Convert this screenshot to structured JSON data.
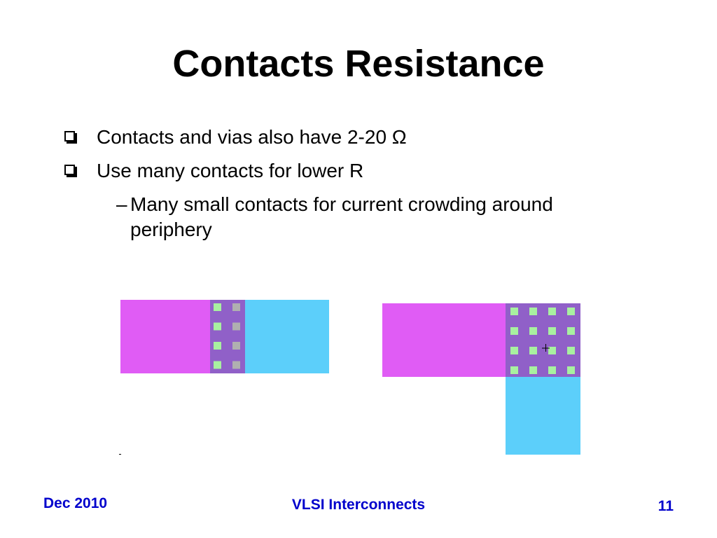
{
  "slide": {
    "title": "Contacts Resistance",
    "bullets": [
      {
        "text": "Contacts and vias also have 2-20 Ω",
        "icon": "checkbox-bullet-icon"
      },
      {
        "text": "Use many contacts for lower R",
        "icon": "checkbox-bullet-icon"
      }
    ],
    "sub_bullet": {
      "dash": "–",
      "text": "Many small contacts for current crowding around periphery"
    }
  },
  "diagram": {
    "colors": {
      "metal1": "#e05cf5",
      "metal2": "#5ccffa",
      "overlap": "#9060c8",
      "contact_green": "#a8f0a0",
      "contact_gray": "#b0b0b0"
    },
    "left_contacts": {
      "rows": 4,
      "cols": 2
    },
    "right_contacts": {
      "rows": 4,
      "cols": 4
    }
  },
  "footer": {
    "date": "Dec 2010",
    "course": "VLSI Interconnects",
    "page": "11"
  }
}
